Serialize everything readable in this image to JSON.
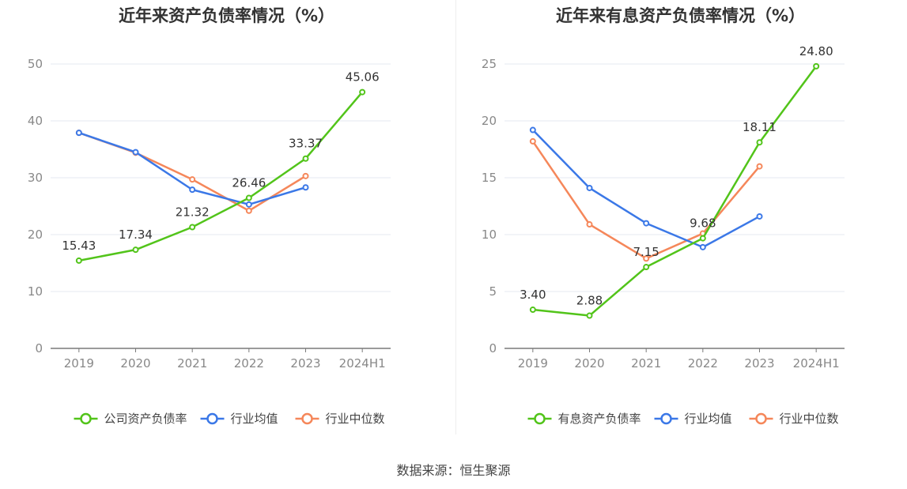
{
  "source": "数据来源：恒生聚源",
  "chart_data": [
    {
      "type": "line",
      "title": "近年来资产负债率情况（%）",
      "categories": [
        "2019",
        "2020",
        "2021",
        "2022",
        "2023",
        "2024H1"
      ],
      "ylim": [
        0,
        50
      ],
      "yticks": [
        0,
        10,
        20,
        30,
        40,
        50
      ],
      "grid": true,
      "legend_position": "bottom",
      "series": [
        {
          "name": "公司资产负债率",
          "color": "#52c41a",
          "values": [
            15.43,
            17.34,
            21.32,
            26.46,
            33.37,
            45.06
          ],
          "labels": [
            "15.43",
            "17.34",
            "21.32",
            "26.46",
            "33.37",
            "45.06"
          ]
        },
        {
          "name": "行业均值",
          "color": "#3b78e7",
          "values": [
            37.9,
            34.5,
            27.9,
            25.3,
            28.3,
            null
          ]
        },
        {
          "name": "行业中位数",
          "color": "#f5875a",
          "values": [
            37.9,
            34.4,
            29.7,
            24.2,
            30.3,
            null
          ]
        }
      ]
    },
    {
      "type": "line",
      "title": "近年来有息资产负债率情况（%）",
      "categories": [
        "2019",
        "2020",
        "2021",
        "2022",
        "2023",
        "2024H1"
      ],
      "ylim": [
        0,
        25
      ],
      "yticks": [
        0,
        5,
        10,
        15,
        20,
        25
      ],
      "grid": true,
      "legend_position": "bottom",
      "series": [
        {
          "name": "有息资产负债率",
          "color": "#52c41a",
          "values": [
            3.4,
            2.88,
            7.15,
            9.68,
            18.11,
            24.8
          ],
          "labels": [
            "3.40",
            "2.88",
            "7.15",
            "9.68",
            "18.11",
            "24.80"
          ]
        },
        {
          "name": "行业均值",
          "color": "#3b78e7",
          "values": [
            19.2,
            14.1,
            11.0,
            8.9,
            11.6,
            null
          ]
        },
        {
          "name": "行业中位数",
          "color": "#f5875a",
          "values": [
            18.2,
            10.9,
            7.9,
            10.1,
            16.0,
            null
          ]
        }
      ]
    }
  ]
}
